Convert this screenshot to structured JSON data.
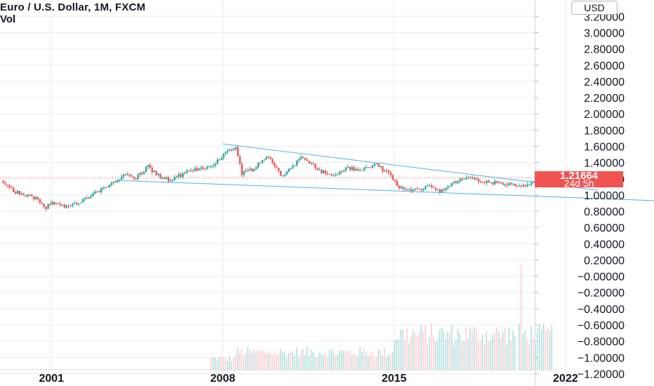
{
  "legend": {
    "title": "Euro / U.S. Dollar, 1M, FXCM",
    "volume_label": "Vol"
  },
  "price_axis": {
    "currency": "USD",
    "last_price": "1.21664",
    "countdown": "24d 5h",
    "ticks": [
      "3.20000",
      "3.00000",
      "2.80000",
      "2.60000",
      "2.40000",
      "2.20000",
      "2.00000",
      "1.80000",
      "1.60000",
      "1.40000",
      "1.20000",
      "1.00000",
      "0.80000",
      "0.60000",
      "0.40000",
      "0.20000",
      "−0.00000",
      "−0.20000",
      "−0.40000",
      "−0.60000",
      "−0.80000",
      "−1.00000",
      "−1.20000"
    ]
  },
  "colors": {
    "up": "#26a69a",
    "down": "#ef5350",
    "vol_up": "#b2dfdb",
    "vol_down": "#ffcdd2",
    "trendline": "#4ab6e0",
    "last_price_line": "#f05350",
    "grid": "#ececec",
    "axis_text": "#131722"
  },
  "chart_data": {
    "type": "candlestick",
    "symbol": "EURUSD",
    "interval": "1M",
    "x_tick_labels": [
      "2001",
      "2008",
      "2015",
      "2022"
    ],
    "y_ticks": [
      3.2,
      3.0,
      2.8,
      2.6,
      2.4,
      2.2,
      2.0,
      1.8,
      1.6,
      1.4,
      1.2,
      1.0,
      0.8,
      0.6,
      0.4,
      0.2,
      0.0,
      -0.2,
      -0.4,
      -0.6,
      -0.8,
      -1.0,
      -1.2
    ],
    "y_range": [
      -1.3,
      3.35
    ],
    "x_range": [
      1998.9,
      2029.0
    ],
    "last_close": 1.21664,
    "series": [
      {
        "name": "price",
        "points": [
          {
            "date": "1999-01",
            "close": 1.17
          },
          {
            "date": "1999-06",
            "close": 1.05
          },
          {
            "date": "2000-01",
            "close": 0.99
          },
          {
            "date": "2000-06",
            "close": 0.95
          },
          {
            "date": "2000-10",
            "close": 0.85
          },
          {
            "date": "2001-01",
            "close": 0.92
          },
          {
            "date": "2001-06",
            "close": 0.86
          },
          {
            "date": "2002-01",
            "close": 0.88
          },
          {
            "date": "2002-06",
            "close": 0.97
          },
          {
            "date": "2003-01",
            "close": 1.06
          },
          {
            "date": "2003-06",
            "close": 1.15
          },
          {
            "date": "2004-01",
            "close": 1.25
          },
          {
            "date": "2004-06",
            "close": 1.21
          },
          {
            "date": "2004-12",
            "close": 1.35
          },
          {
            "date": "2005-06",
            "close": 1.22
          },
          {
            "date": "2005-11",
            "close": 1.18
          },
          {
            "date": "2006-06",
            "close": 1.27
          },
          {
            "date": "2006-12",
            "close": 1.32
          },
          {
            "date": "2007-06",
            "close": 1.35
          },
          {
            "date": "2007-12",
            "close": 1.46
          },
          {
            "date": "2008-04",
            "close": 1.57
          },
          {
            "date": "2008-07",
            "close": 1.58
          },
          {
            "date": "2008-10",
            "close": 1.27
          },
          {
            "date": "2009-03",
            "close": 1.32
          },
          {
            "date": "2009-11",
            "close": 1.48
          },
          {
            "date": "2010-06",
            "close": 1.22
          },
          {
            "date": "2010-11",
            "close": 1.36
          },
          {
            "date": "2011-04",
            "close": 1.48
          },
          {
            "date": "2011-12",
            "close": 1.3
          },
          {
            "date": "2012-07",
            "close": 1.23
          },
          {
            "date": "2013-01",
            "close": 1.34
          },
          {
            "date": "2013-07",
            "close": 1.3
          },
          {
            "date": "2014-04",
            "close": 1.38
          },
          {
            "date": "2014-12",
            "close": 1.21
          },
          {
            "date": "2015-03",
            "close": 1.08
          },
          {
            "date": "2015-11",
            "close": 1.06
          },
          {
            "date": "2016-06",
            "close": 1.11
          },
          {
            "date": "2016-12",
            "close": 1.05
          },
          {
            "date": "2017-06",
            "close": 1.14
          },
          {
            "date": "2018-01",
            "close": 1.24
          },
          {
            "date": "2018-06",
            "close": 1.17
          },
          {
            "date": "2019-06",
            "close": 1.14
          },
          {
            "date": "2020-03",
            "close": 1.1
          },
          {
            "date": "2020-06",
            "close": 1.12
          },
          {
            "date": "2020-12",
            "close": 1.22
          },
          {
            "date": "2021-03",
            "close": 1.17
          },
          {
            "date": "2021-05",
            "close": 1.21664
          }
        ]
      },
      {
        "name": "volume",
        "regimes": [
          {
            "from": "2007-06",
            "to": "2008-06",
            "level": "low"
          },
          {
            "from": "2008-07",
            "to": "2014-12",
            "level": "medium"
          },
          {
            "from": "2015-01",
            "to": "2019-12",
            "level": "high"
          },
          {
            "from": "2020-03",
            "to": "2020-03",
            "level": "spike"
          }
        ]
      }
    ],
    "trendlines": [
      {
        "from": {
          "date": "2008-01",
          "price": 1.63
        },
        "to": {
          "date": "2023-05",
          "price": 1.06
        }
      },
      {
        "from": {
          "date": "2003-10",
          "price": 1.18
        },
        "to": {
          "date": "2025-09",
          "price": 0.93
        }
      }
    ]
  }
}
